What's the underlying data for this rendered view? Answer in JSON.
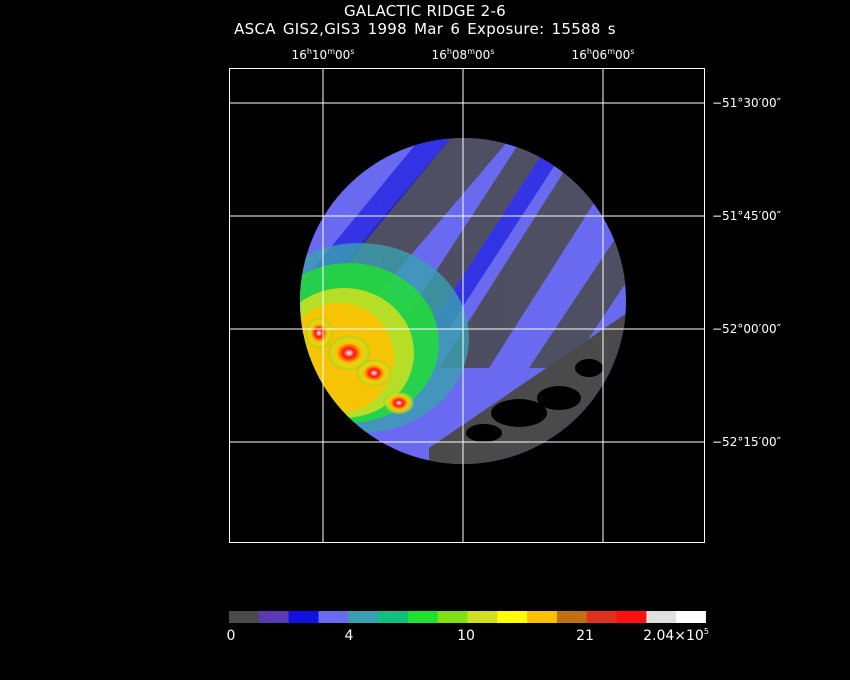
{
  "header": {
    "title": "GALACTIC RIDGE 2-6",
    "subtitle": "ASCA GIS2,GIS3   1998 Mar  6    Exposure: 15588 s"
  },
  "axes": {
    "ra_ticks": [
      {
        "h": "16",
        "m": "10",
        "s": "00"
      },
      {
        "h": "16",
        "m": "08",
        "s": "00"
      },
      {
        "h": "16",
        "m": "06",
        "s": "00"
      }
    ],
    "dec_ticks": [
      "−51°30′00″",
      "−51°45′00″",
      "−52°00′00″",
      "−52°15′00″"
    ]
  },
  "colorbar": {
    "colors": [
      "#4a4a4a",
      "#5a3ab0",
      "#1010e0",
      "#6a6af0",
      "#3aa0b0",
      "#10c080",
      "#20e030",
      "#80e010",
      "#d0e020",
      "#ffff00",
      "#ffc000",
      "#c07010",
      "#e03020",
      "#ff1010",
      "#e0e0e0",
      "#ffffff"
    ],
    "labels": [
      {
        "text": "0"
      },
      {
        "text": "4"
      },
      {
        "text": "10"
      },
      {
        "text": "21"
      },
      {
        "text": "2.04×10",
        "sup": "5"
      }
    ]
  }
}
